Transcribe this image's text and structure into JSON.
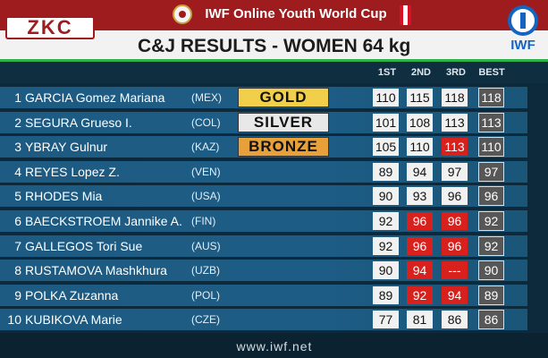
{
  "topbar": {
    "title": "IWF Online Youth World Cup"
  },
  "logos": {
    "zkc": "ZKC",
    "iwf": "IWF"
  },
  "heading": "C&J RESULTS - WOMEN 64 kg",
  "columns": {
    "first": "1ST",
    "second": "2ND",
    "third": "3RD",
    "best": "BEST"
  },
  "colors": {
    "gold": "#f2cf4b",
    "silver": "#e8e8e8",
    "bronze": "#e8a03a",
    "no_lift": "#d8201d",
    "topbar": "#9e1b1e",
    "accent_green": "#2fb34a"
  },
  "rows": [
    {
      "rank": "1",
      "name": "GARCIA Gomez Mariana",
      "nation": "(MEX)",
      "medal": "GOLD",
      "medal_color": "#f2cf4b",
      "attempts": [
        {
          "v": "110",
          "ok": true
        },
        {
          "v": "115",
          "ok": true
        },
        {
          "v": "118",
          "ok": true
        }
      ],
      "best": "118"
    },
    {
      "rank": "2",
      "name": "SEGURA Grueso I.",
      "nation": "(COL)",
      "medal": "SILVER",
      "medal_color": "#e8e8e8",
      "attempts": [
        {
          "v": "101",
          "ok": true
        },
        {
          "v": "108",
          "ok": true
        },
        {
          "v": "113",
          "ok": true
        }
      ],
      "best": "113"
    },
    {
      "rank": "3",
      "name": "YBRAY Gulnur",
      "nation": "(KAZ)",
      "medal": "BRONZE",
      "medal_color": "#e8a03a",
      "attempts": [
        {
          "v": "105",
          "ok": true
        },
        {
          "v": "110",
          "ok": true
        },
        {
          "v": "113",
          "ok": false
        }
      ],
      "best": "110"
    },
    {
      "rank": "4",
      "name": "REYES Lopez Z.",
      "nation": "(VEN)",
      "medal": "",
      "medal_color": "",
      "attempts": [
        {
          "v": "89",
          "ok": true
        },
        {
          "v": "94",
          "ok": true
        },
        {
          "v": "97",
          "ok": true
        }
      ],
      "best": "97"
    },
    {
      "rank": "5",
      "name": "RHODES Mia",
      "nation": "(USA)",
      "medal": "",
      "medal_color": "",
      "attempts": [
        {
          "v": "90",
          "ok": true
        },
        {
          "v": "93",
          "ok": true
        },
        {
          "v": "96",
          "ok": true
        }
      ],
      "best": "96"
    },
    {
      "rank": "6",
      "name": "BAECKSTROEM Jannike A.",
      "nation": "(FIN)",
      "medal": "",
      "medal_color": "",
      "attempts": [
        {
          "v": "92",
          "ok": true
        },
        {
          "v": "96",
          "ok": false
        },
        {
          "v": "96",
          "ok": false
        }
      ],
      "best": "92"
    },
    {
      "rank": "7",
      "name": "GALLEGOS Tori Sue",
      "nation": "(AUS)",
      "medal": "",
      "medal_color": "",
      "attempts": [
        {
          "v": "92",
          "ok": true
        },
        {
          "v": "96",
          "ok": false
        },
        {
          "v": "96",
          "ok": false
        }
      ],
      "best": "92"
    },
    {
      "rank": "8",
      "name": "RUSTAMOVA Mashkhura",
      "nation": "(UZB)",
      "medal": "",
      "medal_color": "",
      "attempts": [
        {
          "v": "90",
          "ok": true
        },
        {
          "v": "94",
          "ok": false
        },
        {
          "v": "---",
          "ok": false
        }
      ],
      "best": "90"
    },
    {
      "rank": "9",
      "name": "POLKA Zuzanna",
      "nation": "(POL)",
      "medal": "",
      "medal_color": "",
      "attempts": [
        {
          "v": "89",
          "ok": true
        },
        {
          "v": "92",
          "ok": false
        },
        {
          "v": "94",
          "ok": false
        }
      ],
      "best": "89"
    },
    {
      "rank": "10",
      "name": "KUBIKOVA Marie",
      "nation": "(CZE)",
      "medal": "",
      "medal_color": "",
      "attempts": [
        {
          "v": "77",
          "ok": true
        },
        {
          "v": "81",
          "ok": true
        },
        {
          "v": "86",
          "ok": true
        }
      ],
      "best": "86"
    }
  ],
  "footer": {
    "url": "www.iwf.net"
  }
}
